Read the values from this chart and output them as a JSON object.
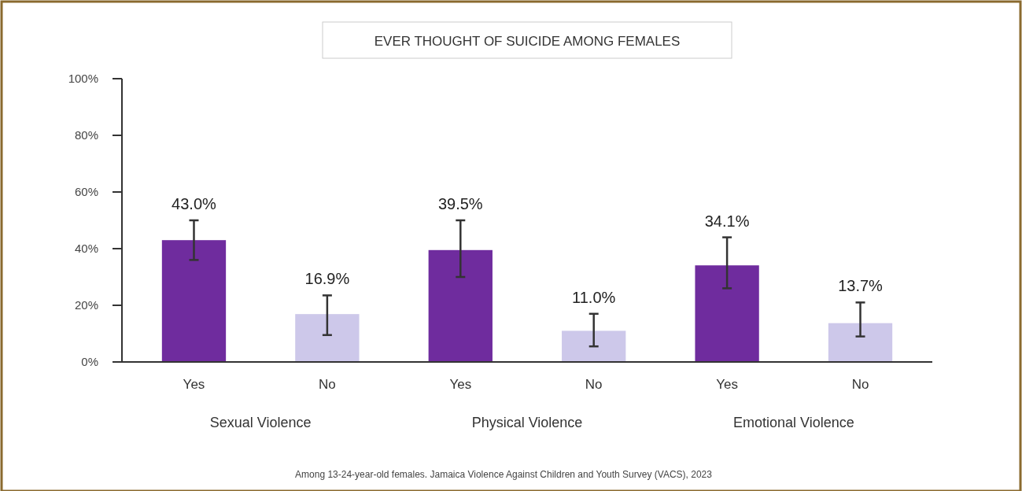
{
  "chart_data": {
    "type": "bar",
    "title": "EVER THOUGHT OF SUICIDE AMONG FEMALES",
    "categories": [
      "Yes",
      "No",
      "Yes",
      "No",
      "Yes",
      "No"
    ],
    "values": [
      43.0,
      16.9,
      39.5,
      11.0,
      34.1,
      13.7
    ],
    "colors": [
      "#6f2c9e",
      "#cdc8ea",
      "#6f2c9e",
      "#cdc8ea",
      "#6f2c9e",
      "#cdc8ea"
    ],
    "errors": [
      [
        36,
        50
      ],
      [
        9.5,
        23.5
      ],
      [
        30,
        50
      ],
      [
        5.5,
        17
      ],
      [
        26,
        44
      ],
      [
        9,
        21
      ]
    ],
    "value_labels": [
      "43.0%",
      "16.9%",
      "39.5%",
      "11.0%",
      "34.1%",
      "13.7%"
    ],
    "ylim": [
      0,
      100
    ],
    "yticks": [
      {
        "value": 0,
        "label": "0%"
      },
      {
        "value": 20,
        "label": "20%"
      },
      {
        "value": 40,
        "label": "40%"
      },
      {
        "value": 60,
        "label": "60%"
      },
      {
        "value": 80,
        "label": "80%"
      },
      {
        "value": 100,
        "label": "100%"
      }
    ],
    "annotations": [
      "Sexual Violence",
      "Physical Violence",
      "Emotional Violence",
      "Among 13-24-year-old females. Jamaica Violence Against Children and Youth Survey (VACS), 2023"
    ]
  }
}
